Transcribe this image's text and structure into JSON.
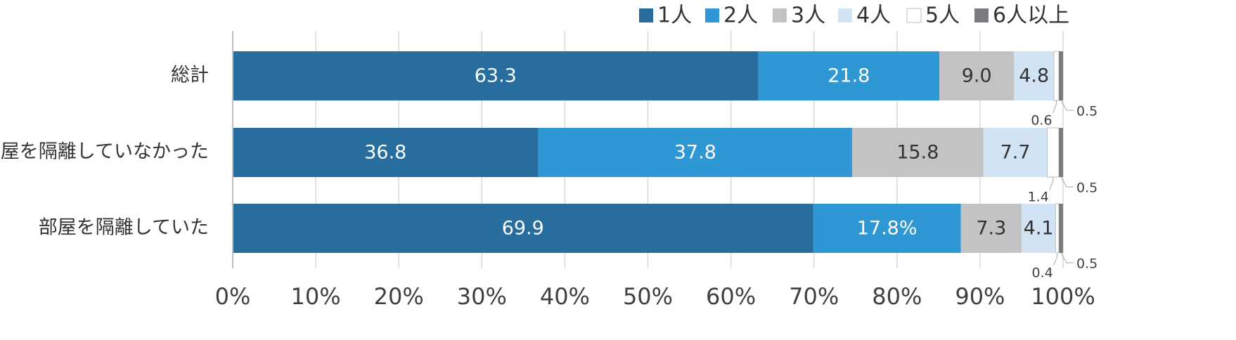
{
  "chart_data": {
    "type": "bar",
    "orientation": "horizontal",
    "stacked": true,
    "categories": [
      "総計",
      "部屋を隔離していなかった",
      "部屋を隔離していた"
    ],
    "series": [
      {
        "name": "1人",
        "color": "#276d9e",
        "values": [
          63.3,
          36.8,
          69.9
        ],
        "labels": [
          "63.3",
          "36.8",
          "69.9"
        ]
      },
      {
        "name": "2人",
        "color": "#2e98d5",
        "values": [
          21.8,
          37.8,
          17.8
        ],
        "labels": [
          "21.8",
          "37.8",
          "17.8%"
        ]
      },
      {
        "name": "3人",
        "color": "#c3c3c6",
        "values": [
          9.0,
          15.8,
          7.3
        ],
        "labels": [
          "9.0",
          "15.8",
          "7.3"
        ]
      },
      {
        "name": "4人",
        "color": "#d2e4f4",
        "values": [
          4.8,
          7.7,
          4.1
        ],
        "labels": [
          "4.8",
          "7.7",
          "4.1"
        ]
      },
      {
        "name": "5人",
        "color": "#ffffff",
        "values": [
          0.6,
          1.4,
          0.4
        ],
        "labels": [
          "0.6",
          "1.4",
          "0.4"
        ]
      },
      {
        "name": "6人以上",
        "color": "#7c7c80",
        "values": [
          0.5,
          0.5,
          0.5
        ],
        "labels": [
          "0.5",
          "0.5",
          "0.5"
        ]
      }
    ],
    "xlim": [
      0,
      100
    ],
    "xticks": [
      "0%",
      "10%",
      "20%",
      "30%",
      "40%",
      "50%",
      "60%",
      "70%",
      "80%",
      "90%",
      "100%"
    ],
    "grid": true,
    "legend_position": "top-right"
  }
}
